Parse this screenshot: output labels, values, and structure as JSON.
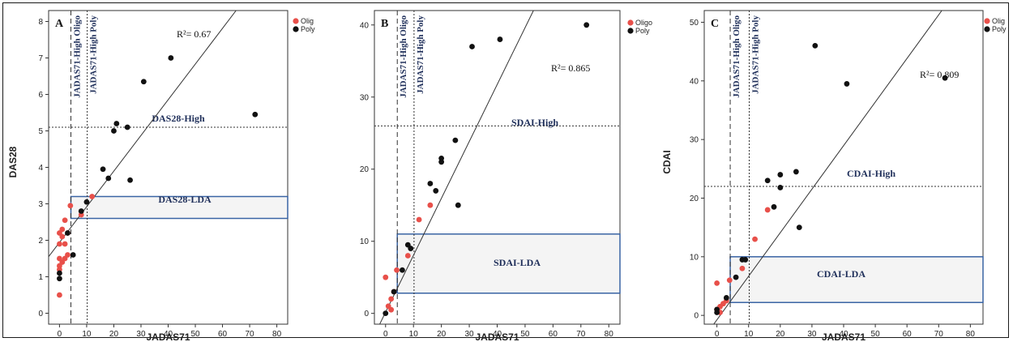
{
  "colors": {
    "olig": "#e8504a",
    "poly": "#111111",
    "box_stroke": "#3a64a4",
    "box_fill": "#f4f4f4"
  },
  "chart_data": [
    {
      "type": "scatter",
      "panel_label": "A",
      "xlabel": "JADAS71",
      "ylabel": "DAS28",
      "xlim": [
        -4,
        84
      ],
      "ylim": [
        -0.3,
        8.3
      ],
      "xticks": [
        0,
        10,
        20,
        30,
        40,
        50,
        60,
        70,
        80
      ],
      "yticks": [
        0,
        1,
        2,
        3,
        4,
        5,
        6,
        7,
        8
      ],
      "r2_label": "R²= 0.67",
      "legend_items": [
        "Olig",
        "Poly"
      ],
      "cutoffs": {
        "olig_x": 4.2,
        "olig_label": "JADAS71-High Oligo",
        "poly_x": 10.2,
        "poly_label": "JADAS71-High Poly",
        "high_y": 5.1,
        "high_label": "DAS28-High"
      },
      "lda_box": {
        "x": [
          4.2,
          84
        ],
        "y": [
          2.6,
          3.2
        ],
        "label": "DAS28-LDA"
      },
      "fit_line": {
        "x": [
          -4,
          65
        ],
        "y": [
          1.55,
          8.3
        ]
      },
      "series": [
        {
          "name": "Olig",
          "points": [
            [
              0,
              0.5
            ],
            [
              0,
              1.2
            ],
            [
              0,
              1.3
            ],
            [
              0,
              1.5
            ],
            [
              0,
              1.9
            ],
            [
              0,
              2.2
            ],
            [
              1,
              2.1
            ],
            [
              1,
              2.3
            ],
            [
              1,
              1.4
            ],
            [
              2,
              1.5
            ],
            [
              2,
              2.55
            ],
            [
              2,
              1.9
            ],
            [
              3,
              1.6
            ],
            [
              3,
              2.2
            ],
            [
              4,
              2.95
            ],
            [
              8,
              2.7
            ],
            [
              12,
              3.2
            ]
          ]
        },
        {
          "name": "Poly",
          "points": [
            [
              0,
              0.95
            ],
            [
              0,
              1.1
            ],
            [
              3,
              2.2
            ],
            [
              5,
              1.6
            ],
            [
              8,
              2.8
            ],
            [
              10,
              3.05
            ],
            [
              16,
              3.95
            ],
            [
              18,
              3.7
            ],
            [
              20,
              5.0
            ],
            [
              21,
              5.2
            ],
            [
              25,
              5.1
            ],
            [
              26,
              3.65
            ],
            [
              31,
              6.35
            ],
            [
              41,
              7.0
            ],
            [
              72,
              5.45
            ]
          ]
        }
      ]
    },
    {
      "type": "scatter",
      "panel_label": "B",
      "xlabel": "JADAS71",
      "ylabel": "",
      "xlim": [
        -4,
        84
      ],
      "ylim": [
        -1.5,
        42
      ],
      "xticks": [
        0,
        10,
        20,
        30,
        40,
        50,
        60,
        70,
        80
      ],
      "yticks": [
        0,
        10,
        20,
        30,
        40
      ],
      "r2_label": "R²= 0.865",
      "legend_items": [
        "Oligo",
        "Poly"
      ],
      "cutoffs": {
        "olig_x": 4.2,
        "olig_label": "JADAS71-High Oligo",
        "poly_x": 10.2,
        "poly_label": "JADAS71-High Poly",
        "high_y": 26,
        "high_label": "SDAI-High"
      },
      "lda_box": {
        "x": [
          4.2,
          84
        ],
        "y": [
          2.8,
          11
        ],
        "label": "SDAI-LDA"
      },
      "fit_line": {
        "x": [
          -4,
          53
        ],
        "y": [
          -3,
          42
        ]
      },
      "series": [
        {
          "name": "Oligo",
          "points": [
            [
              0,
              5
            ],
            [
              1,
              1
            ],
            [
              2,
              2
            ],
            [
              2,
              0.5
            ],
            [
              3,
              3
            ],
            [
              4,
              6
            ],
            [
              8,
              8
            ],
            [
              12,
              13
            ],
            [
              16,
              15
            ]
          ]
        },
        {
          "name": "Poly",
          "points": [
            [
              0,
              0
            ],
            [
              3,
              3
            ],
            [
              6,
              6
            ],
            [
              8,
              9.5
            ],
            [
              9,
              9
            ],
            [
              16,
              18
            ],
            [
              18,
              17
            ],
            [
              20,
              21
            ],
            [
              20,
              21.5
            ],
            [
              25,
              24
            ],
            [
              26,
              15
            ],
            [
              31,
              37
            ],
            [
              41,
              38
            ],
            [
              72,
              40
            ]
          ]
        }
      ]
    },
    {
      "type": "scatter",
      "panel_label": "C",
      "xlabel": "JADAS71",
      "ylabel": "CDAI",
      "xlim": [
        -4,
        84
      ],
      "ylim": [
        -1.5,
        52
      ],
      "xticks": [
        0,
        10,
        20,
        30,
        40,
        50,
        60,
        70,
        80
      ],
      "yticks": [
        0,
        10,
        20,
        30,
        40,
        50
      ],
      "r2_label": "R²= 0.809",
      "legend_items": [
        "Olig",
        "Poly"
      ],
      "cutoffs": {
        "olig_x": 4.2,
        "olig_label": "JADAS71-High Oligo",
        "poly_x": 10.2,
        "poly_label": "JADAS71-High Poly",
        "high_y": 22,
        "high_label": "CDAI-High"
      },
      "lda_box": {
        "x": [
          4.2,
          84
        ],
        "y": [
          2.2,
          10
        ],
        "label": "CDAI-LDA"
      },
      "fit_line": {
        "x": [
          -1,
          71
        ],
        "y": [
          -1.5,
          52
        ]
      },
      "series": [
        {
          "name": "Olig",
          "points": [
            [
              0,
              5.5
            ],
            [
              0,
              1
            ],
            [
              1,
              1.5
            ],
            [
              1,
              0.5
            ],
            [
              2,
              2
            ],
            [
              3,
              2.5
            ],
            [
              4,
              6
            ],
            [
              8,
              8
            ],
            [
              12,
              13
            ],
            [
              16,
              18
            ]
          ]
        },
        {
          "name": "Poly",
          "points": [
            [
              0,
              0.5
            ],
            [
              0,
              1
            ],
            [
              3,
              3
            ],
            [
              6,
              6.5
            ],
            [
              8,
              9.5
            ],
            [
              9,
              9.5
            ],
            [
              16,
              23
            ],
            [
              18,
              18.5
            ],
            [
              20,
              21.8
            ],
            [
              20,
              24
            ],
            [
              25,
              24.5
            ],
            [
              26,
              15
            ],
            [
              31,
              46
            ],
            [
              41,
              39.5
            ],
            [
              72,
              40.5
            ]
          ]
        }
      ]
    }
  ]
}
